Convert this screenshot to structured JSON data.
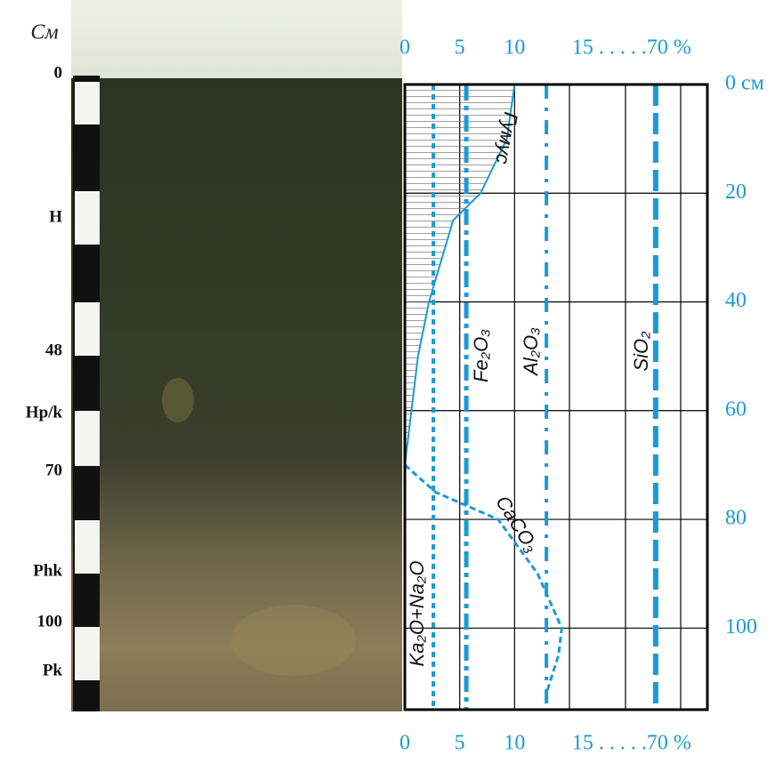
{
  "photo": {
    "depth_unit": "См",
    "marks": [
      "0",
      "H",
      "48",
      "Hp/k",
      "70",
      "Phk",
      "100",
      "Pk"
    ]
  },
  "chart_data": {
    "type": "line",
    "xlim": [
      0,
      73
    ],
    "xbreak": [
      15,
      65
    ],
    "xticks": [
      0,
      5,
      10,
      {
        "value": 70,
        "label": "15 . . . . .70 %"
      }
    ],
    "ylim": [
      0,
      115
    ],
    "y_inverted": true,
    "yticks": [
      {
        "value": 0,
        "label": "0 см"
      },
      20,
      40,
      60,
      80,
      100
    ],
    "grid": true,
    "axis_color": "#1a9ad6",
    "series": [
      {
        "name": "Гумус",
        "color": "#1a9ad6",
        "style": "solid",
        "hatch": true,
        "x": [
          10,
          9.3,
          6.9,
          4.4,
          2.2,
          1.2,
          0.6,
          0
        ],
        "depth": [
          0,
          10,
          20,
          25,
          40,
          50,
          60,
          70
        ]
      },
      {
        "name": "Ka₂O+Na₂O",
        "color": "#1a9ad6",
        "style": "dotted",
        "x": [
          2.6,
          2.6
        ],
        "depth": [
          0,
          115
        ]
      },
      {
        "name": "Fe₂O₃",
        "color": "#1a9ad6",
        "style": "dashdot",
        "x": [
          5.6,
          5.6
        ],
        "depth": [
          0,
          115
        ]
      },
      {
        "name": "Al₂O₃",
        "color": "#1a9ad6",
        "style": "dashdotdot",
        "x": [
          12.9,
          12.9
        ],
        "depth": [
          0,
          115
        ]
      },
      {
        "name": "SiO₂",
        "color": "#1a9ad6",
        "style": "dashed",
        "x": [
          70,
          70
        ],
        "depth": [
          0,
          115
        ]
      },
      {
        "name": "CaCO₃",
        "color": "#1a9ad6",
        "style": "shortdash",
        "x": [
          0,
          2.8,
          8.5,
          12.1,
          14.3,
          14.0,
          12.9
        ],
        "depth": [
          70,
          75,
          80,
          90,
          100,
          105,
          112
        ]
      }
    ]
  }
}
